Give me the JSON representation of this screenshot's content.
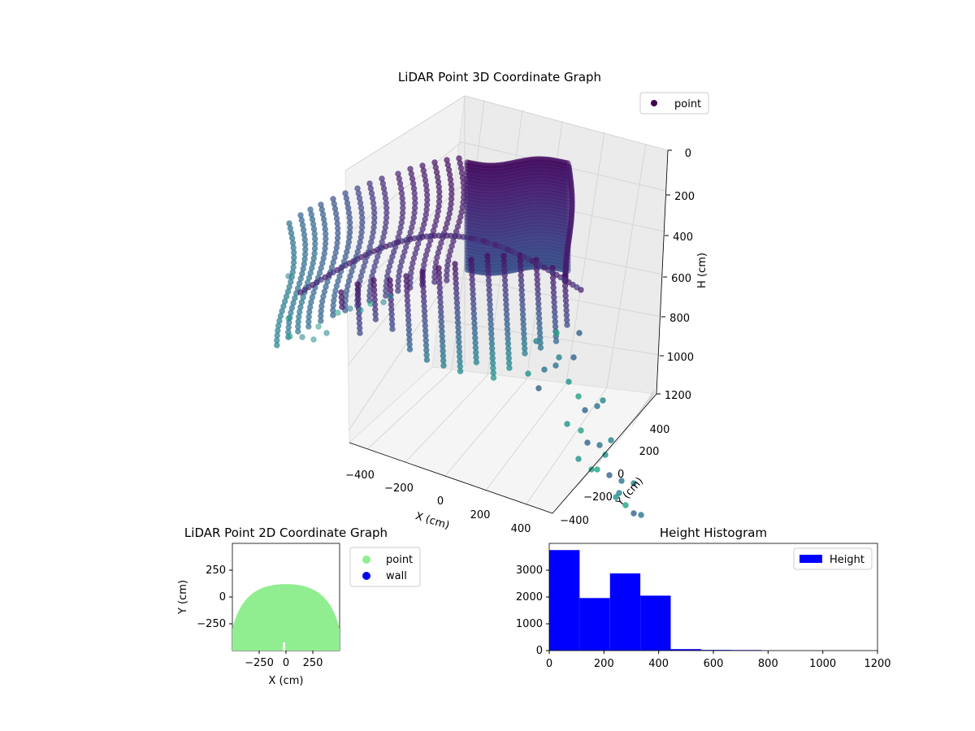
{
  "chart_data": [
    {
      "type": "scatter3d",
      "title": "LiDAR Point 3D Coordinate Graph",
      "xlabel": "X (cm)",
      "ylabel": "Y (cm)",
      "zlabel": "H (cm)",
      "xticks": [
        "−400",
        "−200",
        "0",
        "200",
        "400"
      ],
      "yticks": [
        "−400",
        "−200",
        "0",
        "200",
        "400"
      ],
      "zticks": [
        "0",
        "200",
        "400",
        "600",
        "800",
        "1000",
        "1200"
      ],
      "xlim": [
        -450,
        450
      ],
      "ylim": [
        -450,
        450
      ],
      "zlim": [
        0,
        1200
      ],
      "z_axis_inverted": true,
      "colormap": "viridis",
      "legend": {
        "position": "top-right",
        "entries": [
          {
            "label": "point",
            "color": "#440154"
          }
        ]
      },
      "grid": true,
      "description_of_points": "Dome of points: fan of scan arcs in the front-left, dense curved wall in the back, scattered teal points at large heights near the front-right"
    },
    {
      "type": "scatter",
      "title": "LiDAR Point 2D Coordinate Graph",
      "xlabel": "X (cm)",
      "ylabel": "Y (cm)",
      "xticks": [
        "−250",
        "0",
        "250"
      ],
      "yticks": [
        "250",
        "0",
        "−250"
      ],
      "xlim": [
        -500,
        500
      ],
      "ylim": [
        -500,
        500
      ],
      "series": [
        {
          "name": "point",
          "color": "#90ee90",
          "shape": "filled half-disc",
          "y_top": 120,
          "y_bottom": -500,
          "x_extent": [
            -500,
            500
          ]
        },
        {
          "name": "wall",
          "color": "#0000ff",
          "points": []
        }
      ],
      "legend": {
        "position": "outside-right",
        "entries": [
          {
            "label": "point",
            "color": "#90ee90"
          },
          {
            "label": "wall",
            "color": "#0000ff"
          }
        ]
      }
    },
    {
      "type": "bar",
      "title": "Height Histogram",
      "xticks": [
        "0",
        "200",
        "400",
        "600",
        "800",
        "1000",
        "1200"
      ],
      "yticks": [
        "0",
        "1000",
        "2000",
        "3000"
      ],
      "xlim": [
        0,
        1200
      ],
      "ylim": [
        0,
        4000
      ],
      "bin_edges": [
        0,
        111,
        222,
        333,
        444,
        555,
        666,
        777
      ],
      "series": [
        {
          "name": "Height",
          "color": "#0000ff",
          "values": [
            3750,
            1960,
            2880,
            2050,
            55,
            25,
            20
          ]
        }
      ],
      "legend": {
        "position": "top-right",
        "entries": [
          {
            "label": "Height",
            "color": "#0000ff"
          }
        ]
      }
    }
  ]
}
